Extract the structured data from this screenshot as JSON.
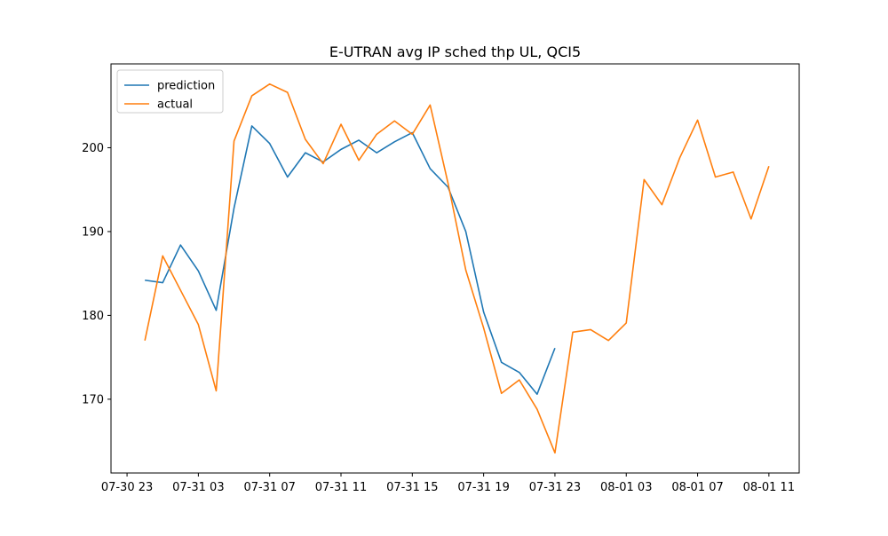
{
  "chart_data": {
    "type": "line",
    "title": "E-UTRAN avg IP sched thp UL, QCI5",
    "xlabel": "",
    "ylabel": "",
    "x_tick_labels": [
      "07-30 23",
      "07-31 03",
      "07-31 07",
      "07-31 11",
      "07-31 15",
      "07-31 19",
      "07-31 23",
      "08-01 03",
      "08-01 07",
      "08-01 11"
    ],
    "x_ticks": [
      "2023-07-30 23:00",
      "2023-07-31 03:00",
      "2023-07-31 07:00",
      "2023-07-31 11:00",
      "2023-07-31 15:00",
      "2023-07-31 19:00",
      "2023-07-31 23:00",
      "2023-08-01 03:00",
      "2023-08-01 07:00",
      "2023-08-01 11:00"
    ],
    "y_ticks": [
      170,
      180,
      190,
      200
    ],
    "xlim": [
      "2023-07-30 22:06",
      "2023-08-01 12:42"
    ],
    "ylim": [
      161.2,
      210.0
    ],
    "grid": false,
    "legend_position": "top-left",
    "series": [
      {
        "name": "prediction",
        "color": "#1f77b4",
        "x": [
          "2023-07-31 00:00",
          "2023-07-31 01:00",
          "2023-07-31 02:00",
          "2023-07-31 03:00",
          "2023-07-31 04:00",
          "2023-07-31 05:00",
          "2023-07-31 06:00",
          "2023-07-31 07:00",
          "2023-07-31 08:00",
          "2023-07-31 09:00",
          "2023-07-31 10:00",
          "2023-07-31 11:00",
          "2023-07-31 12:00",
          "2023-07-31 13:00",
          "2023-07-31 14:00",
          "2023-07-31 15:00",
          "2023-07-31 16:00",
          "2023-07-31 17:00",
          "2023-07-31 18:00",
          "2023-07-31 19:00",
          "2023-07-31 20:00",
          "2023-07-31 21:00",
          "2023-07-31 22:00",
          "2023-07-31 23:00"
        ],
        "values": [
          184.2,
          183.9,
          188.4,
          185.3,
          180.6,
          192.8,
          202.6,
          200.5,
          196.5,
          199.4,
          198.3,
          199.8,
          200.9,
          199.4,
          200.7,
          201.8,
          197.5,
          195.3,
          190.0,
          180.4,
          174.4,
          173.2,
          170.6,
          176.1
        ]
      },
      {
        "name": "actual",
        "color": "#ff7f0e",
        "x": [
          "2023-07-31 00:00",
          "2023-07-31 01:00",
          "2023-07-31 02:00",
          "2023-07-31 03:00",
          "2023-07-31 04:00",
          "2023-07-31 05:00",
          "2023-07-31 06:00",
          "2023-07-31 07:00",
          "2023-07-31 08:00",
          "2023-07-31 09:00",
          "2023-07-31 10:00",
          "2023-07-31 11:00",
          "2023-07-31 12:00",
          "2023-07-31 13:00",
          "2023-07-31 14:00",
          "2023-07-31 15:00",
          "2023-07-31 16:00",
          "2023-07-31 17:00",
          "2023-07-31 18:00",
          "2023-07-31 19:00",
          "2023-07-31 20:00",
          "2023-07-31 21:00",
          "2023-07-31 22:00",
          "2023-07-31 23:00",
          "2023-08-01 00:00",
          "2023-08-01 01:00",
          "2023-08-01 02:00",
          "2023-08-01 03:00",
          "2023-08-01 04:00",
          "2023-08-01 05:00",
          "2023-08-01 06:00",
          "2023-08-01 07:00",
          "2023-08-01 08:00",
          "2023-08-01 09:00",
          "2023-08-01 10:00",
          "2023-08-01 11:00"
        ],
        "values": [
          177.0,
          187.1,
          183.0,
          178.9,
          171.0,
          200.8,
          206.2,
          207.6,
          206.6,
          201.0,
          198.1,
          202.8,
          198.5,
          201.6,
          203.2,
          201.6,
          205.1,
          195.8,
          185.4,
          178.5,
          170.7,
          172.3,
          168.8,
          163.6,
          178.0,
          178.3,
          177.0,
          179.1,
          196.2,
          193.2,
          198.8,
          203.3,
          196.5,
          197.1,
          191.5,
          197.8
        ]
      }
    ]
  }
}
